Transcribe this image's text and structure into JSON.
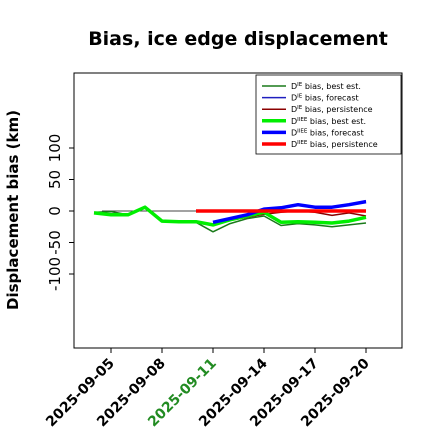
{
  "chart_data": {
    "type": "line",
    "title": "Bias, ice edge displacement",
    "ylabel": "Displacement bias (km)",
    "xlabel": "",
    "ylim": [
      -100,
      100
    ],
    "yticks": [
      -100,
      -50,
      0,
      50,
      100
    ],
    "x": [
      "2025-09-04",
      "2025-09-05",
      "2025-09-06",
      "2025-09-07",
      "2025-09-08",
      "2025-09-09",
      "2025-09-10",
      "2025-09-11",
      "2025-09-12",
      "2025-09-13",
      "2025-09-14",
      "2025-09-15",
      "2025-09-16",
      "2025-09-17",
      "2025-09-18",
      "2025-09-19",
      "2025-09-20"
    ],
    "xticks": [
      "2025-09-05",
      "2025-09-08",
      "2025-09-11",
      "2025-09-14",
      "2025-09-17",
      "2025-09-20"
    ],
    "highlight_tick": "2025-09-11",
    "highlight_color": "#228B22",
    "zero_line": true,
    "legend_position": "top-right",
    "series": [
      {
        "name": "D^IE bias, best est.",
        "color": "#1a7a1a",
        "width": 1.5,
        "values": [
          -2,
          -1,
          -6,
          7,
          -16,
          -17,
          -18,
          -33,
          -20,
          -12,
          -8,
          -23,
          -20,
          -22,
          -25,
          -22,
          -19
        ]
      },
      {
        "name": "D^IE bias, forecast",
        "color": "#1f1fbf",
        "width": 1.5,
        "values": [
          null,
          null,
          null,
          null,
          null,
          null,
          null,
          -20,
          -14,
          -6,
          4,
          6,
          10,
          7,
          6,
          11,
          16
        ]
      },
      {
        "name": "D^IE bias, persistence",
        "color": "#8b0000",
        "width": 1.5,
        "values": [
          null,
          null,
          null,
          null,
          null,
          null,
          null,
          -22,
          -15,
          -10,
          -5,
          -2,
          0,
          -2,
          -7,
          -3,
          -8
        ]
      },
      {
        "name": "D^IIEE bias, best est.",
        "color": "#00ee00",
        "width": 3.5,
        "values": [
          -3,
          -6,
          -6,
          6,
          -16,
          -17,
          -17,
          -22,
          -14,
          -8,
          -2,
          -18,
          -17,
          -18,
          -19,
          -16,
          -10
        ]
      },
      {
        "name": "D^IIEE bias, forecast",
        "color": "#0000ff",
        "width": 3.5,
        "values": [
          null,
          null,
          null,
          null,
          null,
          null,
          null,
          -18,
          -12,
          -6,
          3,
          5,
          10,
          6,
          6,
          10,
          15
        ]
      },
      {
        "name": "D^IIEE bias, persistence",
        "color": "#ff0000",
        "width": 3.5,
        "values": [
          null,
          null,
          null,
          null,
          null,
          null,
          0,
          0,
          0,
          0,
          0,
          0,
          0,
          0,
          0,
          0,
          0
        ]
      }
    ]
  }
}
